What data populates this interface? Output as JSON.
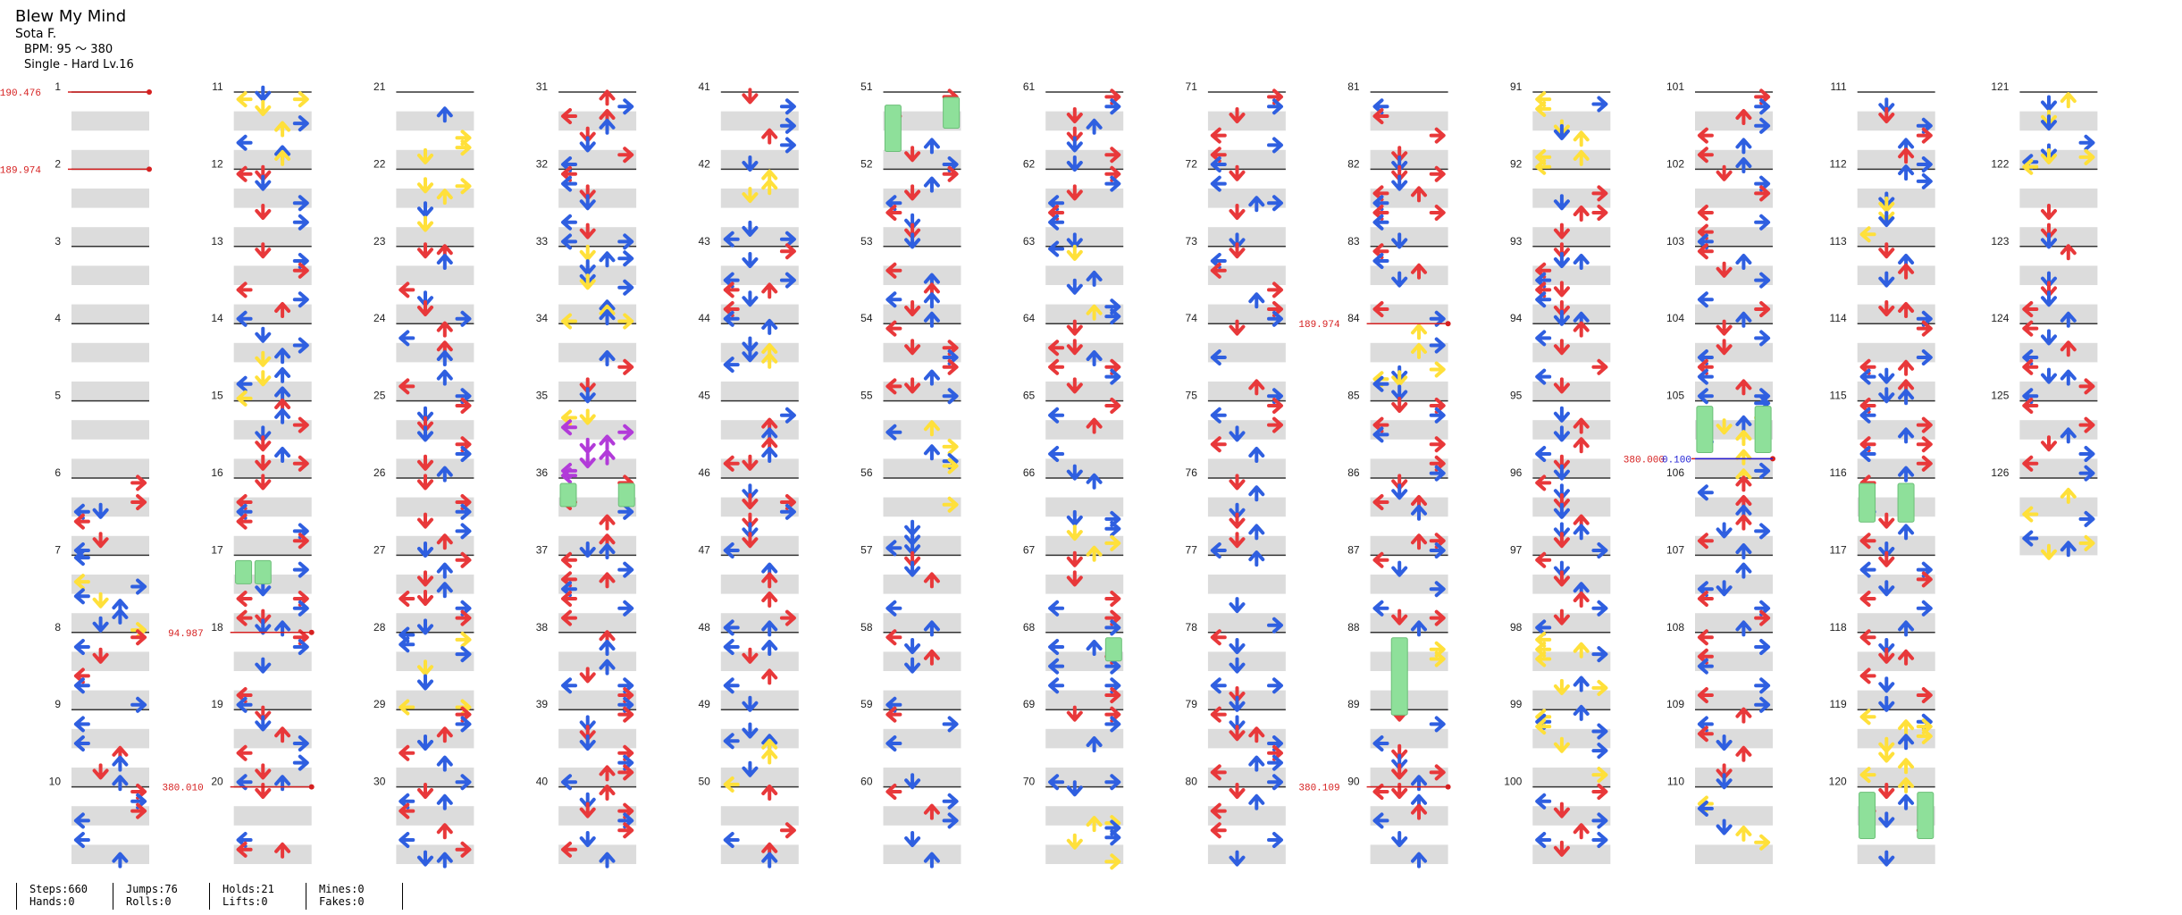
{
  "song": {
    "title": "Blew My Mind",
    "artist": "Sota F.",
    "bpm": "BPM: 95 ～ 380",
    "difficulty": "Single - Hard  Lv.16"
  },
  "chart": {
    "measures": 126,
    "measures_per_column": 10,
    "lanes": 4,
    "colors": {
      "quarter": "#e8383a",
      "eighth": "#2f5fe0",
      "sixteenth": "#ffe03a",
      "twelfth": "#b23bd9",
      "hold": "#8ee09a",
      "bpm_change": "#d62020",
      "stop": "#2020d6",
      "stripe": "#dcdcdc"
    },
    "bpm_changes": [
      {
        "measure": 1,
        "value": "190.476"
      },
      {
        "measure": 2,
        "value": "189.974"
      },
      {
        "measure": 18,
        "value": "94.987"
      },
      {
        "measure": 20,
        "value": "380.010"
      },
      {
        "measure": 84,
        "value": "189.974"
      },
      {
        "measure": 90,
        "value": "380.109"
      },
      {
        "measure": 105.75,
        "value": "380.000"
      }
    ],
    "stops": [
      {
        "measure": 105.75,
        "value": "0.100"
      }
    ]
  },
  "stats": {
    "steps": "Steps:660",
    "hands": "Hands:0",
    "jumps": "Jumps:76",
    "rolls": "Rolls:0",
    "holds": "Holds:21",
    "lifts": "Lifts:0",
    "mines": "Mines:0",
    "fakes": "Fakes:0"
  }
}
